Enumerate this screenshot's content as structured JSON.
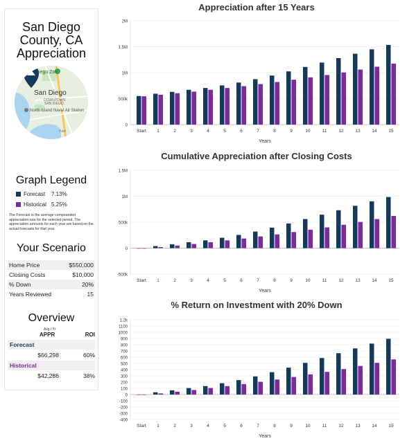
{
  "sidebar": {
    "title": "San Diego County, CA Appreciation",
    "map": {
      "label_zoo": "Diego Zoo",
      "label_city": "San Diego",
      "label_downtown": "DOWNTOWN",
      "label_sandiego_small": "SAN DIEGO",
      "label_naval": "North Island Naval Air Station",
      "label_park": "Park"
    },
    "legend": {
      "heading": "Graph Legend",
      "items": [
        {
          "label": "Forecast",
          "rate": "7.13%",
          "color": "#133a5e"
        },
        {
          "label": "Historical",
          "rate": "5.25%",
          "color": "#7d2aa0"
        }
      ],
      "note": "The Forecast is the average compounded appreciation rate for the selected period. The appreciation amounts for each year are based on the actual forecasts for that year."
    },
    "scenario": {
      "heading": "Your Scenario",
      "rows": [
        {
          "label": "Home Price",
          "value": "$550,000"
        },
        {
          "label": "Closing Costs",
          "value": "$10,000"
        },
        {
          "label": "% Down",
          "value": "20%"
        },
        {
          "label": "Years Reviewed",
          "value": "15"
        }
      ]
    },
    "overview": {
      "heading": "Overview",
      "sub": "Avg / Yr",
      "col_appr": "APPR",
      "col_roi": "ROI",
      "forecast": {
        "label": "Forecast",
        "appr": "$66,298",
        "roi": "60%"
      },
      "historical": {
        "label": "Historical",
        "appr": "$42,286",
        "roi": "38%"
      }
    }
  },
  "colors": {
    "forecast": "#133a5e",
    "historical": "#7d2aa0",
    "negative": "#d9534f",
    "grid": "#e6e6e6"
  },
  "chart_data": [
    {
      "type": "bar",
      "title": "Appreciation after 15 Years",
      "xlabel": "Years",
      "ylabel": "",
      "categories": [
        "Start",
        "1",
        "2",
        "3",
        "4",
        "5",
        "6",
        "7",
        "8",
        "9",
        "10",
        "11",
        "12",
        "13",
        "14",
        "15"
      ],
      "ylim": [
        0,
        2000000
      ],
      "yticks": [
        0,
        500000,
        1000000,
        1500000,
        2000000
      ],
      "yticklabels": [
        "0",
        "500k",
        "1M",
        "1.5M",
        "2M"
      ],
      "series": [
        {
          "name": "Forecast",
          "values": [
            550000,
            595000,
            630000,
            670000,
            705000,
            755000,
            810000,
            875000,
            945000,
            1025000,
            1110000,
            1195000,
            1280000,
            1365000,
            1450000,
            1535000
          ]
        },
        {
          "name": "Historical",
          "values": [
            545000,
            575000,
            605000,
            635000,
            670000,
            705000,
            740000,
            780000,
            820000,
            865000,
            910000,
            955000,
            1005000,
            1060000,
            1115000,
            1175000
          ]
        }
      ]
    },
    {
      "type": "bar",
      "title": "Cumulative Appreciation after Closing Costs",
      "xlabel": "Years",
      "ylabel": "",
      "categories": [
        "Start",
        "1",
        "2",
        "3",
        "4",
        "5",
        "6",
        "7",
        "8",
        "9",
        "10",
        "11",
        "12",
        "13",
        "14",
        "15"
      ],
      "ylim": [
        -500000,
        1500000
      ],
      "yticks": [
        -500000,
        0,
        500000,
        1000000,
        1500000
      ],
      "yticklabels": [
        "-500k",
        "0",
        "500k",
        "1M",
        "1.5M"
      ],
      "series": [
        {
          "name": "Forecast",
          "values": [
            -10000,
            40000,
            75000,
            115000,
            150000,
            200000,
            255000,
            320000,
            395000,
            475000,
            560000,
            645000,
            730000,
            815000,
            900000,
            985000
          ]
        },
        {
          "name": "Historical",
          "values": [
            -10000,
            20000,
            50000,
            80000,
            115000,
            150000,
            185000,
            225000,
            265000,
            310000,
            355000,
            400000,
            450000,
            505000,
            560000,
            620000
          ]
        }
      ]
    },
    {
      "type": "bar",
      "title": "% Return on Investment with 20% Down",
      "xlabel": "Years",
      "ylabel": "",
      "categories": [
        "Start",
        "1",
        "2",
        "3",
        "4",
        "5",
        "6",
        "7",
        "8",
        "9",
        "10",
        "11",
        "12",
        "13",
        "14",
        "15"
      ],
      "ylim": [
        -400,
        1200
      ],
      "yticks": [
        -400,
        -300,
        -200,
        -100,
        0,
        100,
        200,
        300,
        400,
        500,
        600,
        700,
        800,
        900,
        1000,
        1100,
        1200
      ],
      "yticklabels": [
        "-400",
        "-300",
        "-200",
        "-100",
        "0",
        "100",
        "200",
        "300",
        "400",
        "500",
        "600",
        "700",
        "800",
        "900",
        "1000",
        "1100",
        "1.2k"
      ],
      "series": [
        {
          "name": "Forecast",
          "values": [
            -9,
            36,
            68,
            104,
            136,
            182,
            232,
            291,
            359,
            432,
            509,
            586,
            664,
            741,
            818,
            895
          ]
        },
        {
          "name": "Historical",
          "values": [
            -9,
            18,
            45,
            73,
            105,
            136,
            168,
            205,
            241,
            282,
            323,
            364,
            409,
            459,
            509,
            564
          ]
        }
      ]
    }
  ]
}
